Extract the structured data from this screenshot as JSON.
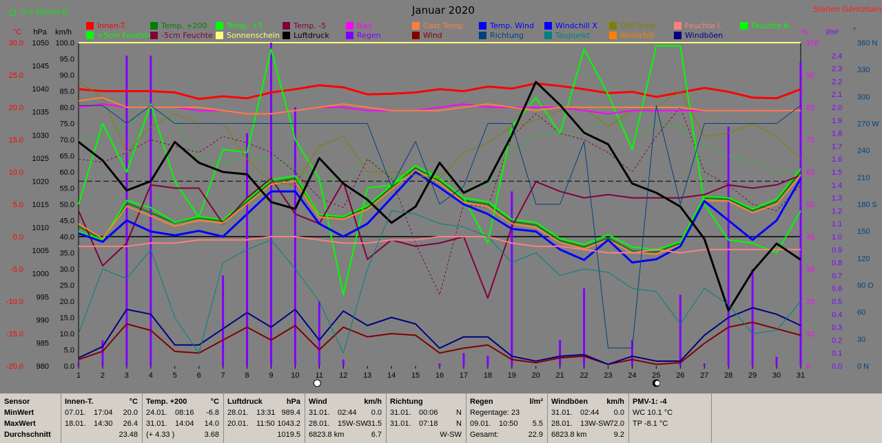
{
  "header": {
    "title": "Januar 2020",
    "station": "Station Göritzhain",
    "monat": "-0.6 Monat-Ø"
  },
  "legend": [
    {
      "label": "Innen-T.",
      "color": "#ff0000"
    },
    {
      "label": "Temp. +200",
      "color": "#008000"
    },
    {
      "label": "Temp. +5",
      "color": "#00ff00"
    },
    {
      "label": "Temp. -5",
      "color": "#800040"
    },
    {
      "label": "Bad",
      "color": "#ff00ff"
    },
    {
      "label": "Gast Temp",
      "color": "#ff8040"
    },
    {
      "label": "Temp. Wind",
      "color": "#0000ff"
    },
    {
      "label": "Windchill X",
      "color": "#0000ff"
    },
    {
      "label": "Diff Temp.",
      "color": "#808000"
    },
    {
      "label": "Feuchte I.",
      "color": "#ff8080"
    },
    {
      "label": "Feuchte A.",
      "color": "#00ff00"
    },
    {
      "label": "+5cm Feuchte",
      "color": "#00ff00"
    },
    {
      "label": "-5cm Feuchte",
      "color": "#800040"
    },
    {
      "label": "Sonnenschein",
      "color": "#ffff80"
    },
    {
      "label": "Luftdruck",
      "color": "#000000"
    },
    {
      "label": "Regen",
      "color": "#8000ff"
    },
    {
      "label": "Wind",
      "color": "#800000"
    },
    {
      "label": "Richtung",
      "color": "#004080"
    },
    {
      "label": "Taupunkt",
      "color": "#008080"
    },
    {
      "label": "Windchill",
      "color": "#ff8000"
    },
    {
      "label": "Windböen",
      "color": "#000080"
    }
  ],
  "axis_units": {
    "temp": "°C",
    "pressure": "hPa",
    "wind": "km/h",
    "humidity": "%",
    "rain": "l/m²",
    "direction": "°"
  },
  "chart_data": {
    "type": "line",
    "title": "Januar 2020",
    "x": [
      1,
      2,
      3,
      4,
      5,
      6,
      7,
      8,
      9,
      10,
      11,
      12,
      13,
      14,
      15,
      16,
      17,
      18,
      19,
      20,
      21,
      22,
      23,
      24,
      25,
      26,
      27,
      28,
      29,
      30,
      31
    ],
    "axes": {
      "temp": {
        "label": "°C",
        "range": [
          -20,
          30
        ],
        "ticks": [
          "30.0",
          "25.0",
          "20.0",
          "15.0",
          "10.0",
          "5.0",
          "0.0",
          "-5.0",
          "-10.0",
          "-15.0",
          "-20.0"
        ],
        "color": "#ff0000"
      },
      "pressure": {
        "label": "hPa",
        "range": [
          980,
          1050
        ],
        "ticks": [
          "1050",
          "1045",
          "1040",
          "1035",
          "1030",
          "1025",
          "1020",
          "1015",
          "1010",
          "1005",
          "1000",
          "995",
          "990",
          "985",
          "980"
        ]
      },
      "wind": {
        "label": "km/h",
        "range": [
          0,
          100
        ],
        "ticks": [
          "100.0",
          "95.0",
          "90.0",
          "85.0",
          "80.0",
          "75.0",
          "70.0",
          "65.0",
          "60.0",
          "55.0",
          "50.0",
          "45.0",
          "40.0",
          "35.0",
          "30.0",
          "25.0",
          "20.0",
          "15.0",
          "10.0",
          "5.0",
          "0.0"
        ]
      },
      "humidity": {
        "label": "%",
        "range": [
          0,
          100
        ],
        "ticks": [
          "100",
          "90",
          "80",
          "70",
          "60",
          "50",
          "40",
          "30",
          "20",
          "10",
          "0"
        ],
        "color": "#ff00ff"
      },
      "rain": {
        "label": "l/m²",
        "range": [
          0,
          2.5
        ],
        "ticks": [
          "2.4",
          "2.3",
          "2.2",
          "2.1",
          "2.0",
          "1.9",
          "1.8",
          "1.7",
          "1.6",
          "1.5",
          "1.4",
          "1.3",
          "1.2",
          "1.1",
          "1.0",
          "0.9",
          "0.8",
          "0.7",
          "0.6",
          "0.5",
          "0.4",
          "0.3",
          "0.2",
          "0.1",
          "0.0"
        ],
        "color": "#8000ff"
      },
      "direction": {
        "label": "°",
        "range": [
          0,
          360
        ],
        "ticks": [
          "360 N",
          "330",
          "300",
          "270 W",
          "240",
          "210",
          "180 S",
          "150",
          "120",
          "90 O",
          "60",
          "30",
          "0 N"
        ],
        "color": "#004080"
      }
    },
    "reference_lines": {
      "temp_zero": 0,
      "pressure_dashed": 1020
    },
    "series": [
      {
        "name": "Innen-T.",
        "axis": "temp",
        "color": "#ff0000",
        "width": 3,
        "values": [
          22.8,
          22.5,
          22.5,
          22.5,
          22.3,
          21.3,
          21.7,
          21.4,
          22.3,
          22.8,
          23.4,
          23.1,
          22.0,
          22.1,
          22.3,
          22.8,
          22.5,
          23.2,
          22.9,
          23.7,
          23.3,
          22.8,
          22.2,
          22.4,
          21.6,
          22.3,
          23.0,
          22.4,
          21.5,
          21.4,
          22.8
        ]
      },
      {
        "name": "Temp. +200",
        "axis": "temp",
        "color": "#008000",
        "width": 2,
        "values": [
          1.6,
          -0.5,
          5.2,
          3.7,
          2.1,
          2.9,
          2.4,
          5.4,
          8.4,
          9.0,
          3.3,
          3.0,
          4.5,
          7.6,
          10.6,
          8.6,
          5.6,
          5.0,
          2.3,
          1.8,
          -0.6,
          -1.6,
          -0.2,
          -2.2,
          -2.4,
          -1.0,
          6.0,
          5.8,
          4.0,
          5.4,
          10.0
        ]
      },
      {
        "name": "Temp. +5",
        "axis": "temp",
        "color": "#00ff00",
        "width": 2,
        "values": [
          0.8,
          -0.5,
          5.6,
          4.5,
          2.2,
          3.1,
          2.6,
          5.7,
          8.8,
          9.4,
          3.4,
          3.1,
          4.8,
          8.0,
          11.0,
          9.0,
          6.0,
          5.4,
          2.7,
          2.2,
          -0.3,
          -1.2,
          0.3,
          -1.6,
          -2.0,
          -0.8,
          6.2,
          6.0,
          4.3,
          5.8,
          10.5
        ]
      },
      {
        "name": "Temp. +5cm",
        "axis": "temp",
        "color": "#00ff00",
        "width": 2,
        "values": [
          5.0,
          17.5,
          10.0,
          20.5,
          8.5,
          3.0,
          13.5,
          13.0,
          29.0,
          15.0,
          9.0,
          -9.0,
          7.5,
          8.0,
          10.0,
          9.0,
          6.0,
          -1.0,
          17.0,
          21.5,
          16.0,
          29.0,
          22.0,
          13.5,
          29.5,
          29.5,
          5.0,
          -0.5,
          -1.0,
          -2.5,
          4.0
        ]
      },
      {
        "name": "Temp. -5",
        "axis": "temp",
        "color": "#800040",
        "width": 2,
        "values": [
          4.0,
          -4.5,
          -1.0,
          8.0,
          7.5,
          7.5,
          2.0,
          6.0,
          9.0,
          3.5,
          2.0,
          8.5,
          -3.5,
          -0.5,
          -1.5,
          -1.0,
          0.0,
          -9.5,
          1.5,
          8.5,
          7.0,
          6.0,
          6.5,
          6.0,
          6.0,
          6.0,
          6.5,
          8.0,
          7.5,
          8.0,
          9.5
        ]
      },
      {
        "name": "Gast Temp",
        "axis": "temp",
        "color": "#ff8040",
        "width": 2,
        "values": [
          2.0,
          -0.3,
          4.7,
          3.2,
          1.6,
          2.5,
          2.1,
          5.1,
          8.1,
          8.6,
          3.0,
          2.7,
          4.2,
          7.3,
          10.3,
          8.3,
          5.3,
          4.6,
          2.0,
          1.4,
          -0.9,
          -1.9,
          -0.5,
          -2.5,
          -2.7,
          -1.3,
          5.6,
          5.5,
          3.7,
          5.0,
          9.6
        ]
      },
      {
        "name": "Temp. Wind",
        "axis": "temp",
        "color": "#0000ff",
        "width": 3,
        "values": [
          0.5,
          -0.8,
          2.5,
          0.8,
          0.2,
          0.9,
          0.0,
          3.5,
          7.0,
          7.0,
          2.0,
          0.0,
          2.0,
          6.0,
          10.0,
          7.6,
          5.0,
          3.5,
          1.2,
          0.8,
          -2.0,
          -3.6,
          -0.5,
          -4.0,
          -3.5,
          -1.5,
          5.5,
          2.5,
          -0.5,
          2.5,
          9.0
        ]
      },
      {
        "name": "Diff Temp.",
        "axis": "temp",
        "color": "#808000",
        "width": 1,
        "values": [
          24.0,
          21.5,
          13.0,
          17.0,
          19.0,
          17.5,
          17.5,
          12.0,
          8.5,
          8.0,
          14.0,
          15.5,
          10.0,
          10.0,
          9.5,
          9.0,
          13.0,
          14.5,
          17.0,
          18.0,
          19.5,
          20.0,
          17.0,
          19.5,
          20.0,
          22.5,
          15.5,
          16.0,
          17.5,
          15.5,
          12.0
        ]
      },
      {
        "name": "Feuchte I.",
        "axis": "humidity",
        "color": "#ff8080",
        "width": 2,
        "values": [
          37,
          37,
          37,
          38,
          38,
          39,
          39,
          39,
          40,
          40,
          39,
          38,
          38,
          39,
          39,
          40,
          40,
          40,
          38,
          37,
          37,
          36,
          35,
          35,
          36,
          35,
          36,
          36,
          36,
          36,
          36
        ]
      },
      {
        "name": "Bad",
        "axis": "humidity",
        "color": "#ff00ff",
        "width": 2,
        "values": [
          80,
          81,
          80,
          80,
          80,
          79,
          79,
          78,
          78,
          79,
          80,
          80,
          79,
          79,
          79,
          80,
          81,
          80,
          80,
          80,
          80,
          79,
          78,
          79,
          79,
          79,
          79,
          79,
          79,
          79,
          79
        ]
      },
      {
        "name": "+5cm Feuchte",
        "axis": "humidity",
        "color": "#ff8040",
        "width": 2,
        "values": [
          82,
          83,
          80,
          80,
          80,
          80,
          79,
          78,
          78,
          79,
          80,
          81,
          80,
          79,
          79,
          79,
          80,
          81,
          80,
          79,
          80,
          80,
          80,
          80,
          80,
          80,
          79,
          79,
          79,
          79,
          79
        ]
      },
      {
        "name": "Luftdruck",
        "axis": "pressure",
        "color": "#000000",
        "width": 3,
        "values": [
          1028.5,
          1024.5,
          1018.0,
          1020.0,
          1028.5,
          1024.0,
          1022.0,
          1021.5,
          1015.5,
          1014.0,
          1025.0,
          1019.5,
          1016.0,
          1011.0,
          1014.5,
          1024.0,
          1017.5,
          1020.0,
          1030.0,
          1041.5,
          1036.5,
          1030.5,
          1028.0,
          1019.5,
          1017.5,
          1014.5,
          1007.5,
          992.0,
          1000.5,
          1006.5,
          1003.0
        ]
      },
      {
        "name": "Wind",
        "axis": "wind",
        "color": "#800000",
        "width": 2,
        "values": [
          2.0,
          4.5,
          13.0,
          11.0,
          4.5,
          4.0,
          8.0,
          12.0,
          8.0,
          12.5,
          5.0,
          12.0,
          9.0,
          10.0,
          9.5,
          4.0,
          5.5,
          6.5,
          2.0,
          1.0,
          2.5,
          3.0,
          0.5,
          2.0,
          0.5,
          1.0,
          7.0,
          12.0,
          13.5,
          11.5,
          9.5
        ]
      },
      {
        "name": "Windböen",
        "axis": "wind",
        "color": "#000080",
        "width": 2,
        "values": [
          2.5,
          6.0,
          17.5,
          16.0,
          6.5,
          6.5,
          11.5,
          16.5,
          12.0,
          17.5,
          8.0,
          17.0,
          12.5,
          15.0,
          13.0,
          5.5,
          9.0,
          9.0,
          3.0,
          1.5,
          3.0,
          3.5,
          0.5,
          3.0,
          1.5,
          1.5,
          9.5,
          15.0,
          18.0,
          16.0,
          12.5
        ]
      },
      {
        "name": "Richtung",
        "axis": "direction",
        "color": "#004080",
        "width": 1,
        "values": [
          290,
          290,
          270,
          290,
          270,
          270,
          270,
          270,
          270,
          270,
          270,
          270,
          270,
          200,
          250,
          180,
          200,
          270,
          270,
          180,
          180,
          250,
          20,
          20,
          290,
          180,
          270,
          270,
          270,
          270,
          290
        ]
      },
      {
        "name": "Taupunkt",
        "axis": "temp",
        "color": "#008080",
        "width": 1,
        "values": [
          -15.0,
          -5.0,
          -6.5,
          -2.0,
          -12.5,
          -18.0,
          -4.0,
          -2.0,
          -0.5,
          -5.0,
          -10.0,
          -18.0,
          -5.0,
          4.0,
          3.5,
          2.0,
          1.5,
          0.0,
          -4.0,
          -2.5,
          -6.0,
          -5.0,
          -5.5,
          -8.0,
          -8.5,
          -13.5,
          -8.0,
          -10.5,
          -15.0,
          -14.5,
          -10.0
        ]
      }
    ],
    "dotted_series": [
      {
        "name": "Feuchte A.",
        "axis": "temp",
        "color": "#00e000",
        "values": [
          15.0,
          15.5,
          17.5,
          19.0,
          18.0,
          12.0,
          11.5,
          12.5,
          12.0,
          10.5,
          8.5,
          9.0,
          12.0,
          9.0,
          10.5,
          10.0,
          7.5,
          8.0,
          13.0,
          16.0,
          16.0,
          16.0,
          19.0,
          15.0,
          17.5,
          17.0,
          14.0,
          12.5,
          11.5,
          10.0,
          10.0
        ]
      },
      {
        "name": "-5cm Feuchte",
        "axis": "temp",
        "color": "#800040",
        "values": [
          12.0,
          11.5,
          13.0,
          15.0,
          14.0,
          13.0,
          15.5,
          14.5,
          13.0,
          10.0,
          6.0,
          4.5,
          12.0,
          9.0,
          -1.0,
          -9.0,
          5.0,
          4.5,
          15.5,
          19.0,
          16.0,
          15.0,
          13.0,
          10.0,
          15.5,
          20.0,
          10.0,
          8.0,
          5.0,
          4.0,
          8.0
        ]
      }
    ],
    "rain_bars": {
      "axis": "rain",
      "color": "#8000ff",
      "values": [
        0.02,
        0.2,
        2.4,
        2.4,
        0.0,
        0.0,
        0.7,
        1.8,
        2.5,
        2.0,
        0.5,
        0.05,
        0.0,
        0.0,
        0.0,
        0.02,
        0.1,
        0.08,
        1.35,
        0.0,
        0.2,
        0.6,
        0.0,
        0.2,
        0.0,
        0.55,
        0.02,
        1.85,
        0.75,
        0.07,
        2.35
      ]
    },
    "sunshine": {
      "axis": "wind",
      "value": 100,
      "color": "#ffff80"
    },
    "moon_days": [
      11,
      25
    ]
  },
  "table": {
    "row_labels": [
      "Sensor",
      "MinWert",
      "MaxWert",
      "Durchschnitt"
    ],
    "columns": [
      {
        "title": "Innen-T.",
        "unit": "°C",
        "rows": [
          [
            "07.01.",
            "17:04",
            "20.0"
          ],
          [
            "18.01.",
            "14:30",
            "26.4"
          ],
          [
            "",
            "",
            "23.48"
          ]
        ]
      },
      {
        "title": "Temp. +200",
        "unit": "°C",
        "rows": [
          [
            "24.01.",
            "08:16",
            "-6.8"
          ],
          [
            "31.01.",
            "14:04",
            "14.0"
          ],
          [
            "(+ 4.33 )",
            "",
            "3.68"
          ]
        ]
      },
      {
        "title": "Luftdruck",
        "unit": "hPa",
        "rows": [
          [
            "28.01.",
            "13:31",
            "989.4"
          ],
          [
            "20.01.",
            "11:50",
            "1043.2"
          ],
          [
            "",
            "",
            "1019.5"
          ]
        ]
      },
      {
        "title": "Wind",
        "unit": "km/h",
        "rows": [
          [
            "31.01.",
            "02:44",
            "0.0"
          ],
          [
            "28.01.",
            "15W-SW",
            "31.5"
          ],
          [
            "6823.8 km",
            "",
            "6.7"
          ]
        ]
      },
      {
        "title": "Richtung",
        "unit": "",
        "rows": [
          [
            "31.01.",
            "00:06",
            "N"
          ],
          [
            "31.01.",
            "07:18",
            "N"
          ],
          [
            "",
            "",
            "W-SW"
          ]
        ]
      },
      {
        "title": "Regen",
        "unit": "l/m²",
        "rows": [
          [
            "Regentage: 23",
            "",
            ""
          ],
          [
            "09.01.",
            "10:50",
            "5.5"
          ],
          [
            "Gesamt:",
            "",
            "22.9"
          ]
        ]
      },
      {
        "title": "Windböen",
        "unit": "km/h",
        "rows": [
          [
            "31.01.",
            "02:44",
            "0.0"
          ],
          [
            "28.01.",
            "13W-SW",
            "72.0"
          ],
          [
            "6823.8 km",
            "",
            "9.2"
          ]
        ]
      },
      {
        "title": "PMV-1: -4",
        "unit": "",
        "rows": [
          [
            "WC 10.1 °C",
            "",
            ""
          ],
          [
            "TP -8.1 °C",
            "",
            ""
          ],
          [
            "",
            "",
            ""
          ]
        ]
      }
    ]
  }
}
